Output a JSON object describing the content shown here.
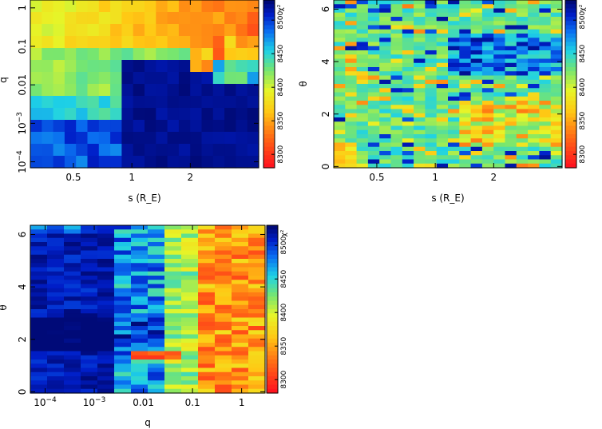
{
  "chart_data": [
    {
      "type": "heatmap",
      "id": "panel-1",
      "xlabel": "s (R_E)",
      "ylabel": "q",
      "x_scale": "log",
      "y_scale": "log",
      "xlim": [
        0.3,
        4.5
      ],
      "ylim": [
        7e-05,
        1.6
      ],
      "x_ticks": [
        {
          "value": 0.5,
          "label": "0.5"
        },
        {
          "value": 1,
          "label": "1"
        },
        {
          "value": 2,
          "label": "2"
        }
      ],
      "y_ticks": [
        {
          "value": 0.0001,
          "label": "10",
          "sup": "−4"
        },
        {
          "value": 0.001,
          "label": "10",
          "sup": "−3"
        },
        {
          "value": 0.01,
          "label": "0.01"
        },
        {
          "value": 0.1,
          "label": "0.1"
        },
        {
          "value": 1,
          "label": "1"
        }
      ],
      "grid_cols": 20,
      "grid_rows": 14,
      "colorbar": {
        "label": "χ²",
        "min": 8280,
        "max": 8530,
        "ticks": [
          8300,
          8350,
          8400,
          8450,
          8500
        ]
      }
    },
    {
      "type": "heatmap",
      "id": "panel-2",
      "xlabel": "s (R_E)",
      "ylabel": "θ",
      "x_scale": "log",
      "y_scale": "linear",
      "xlim": [
        0.3,
        4.5
      ],
      "ylim": [
        -0.05,
        6.35
      ],
      "x_ticks": [
        {
          "value": 0.5,
          "label": "0.5"
        },
        {
          "value": 1,
          "label": "1"
        },
        {
          "value": 2,
          "label": "2"
        }
      ],
      "y_ticks": [
        {
          "value": 0,
          "label": "0"
        },
        {
          "value": 2,
          "label": "2"
        },
        {
          "value": 4,
          "label": "4"
        },
        {
          "value": 6,
          "label": "6"
        }
      ],
      "grid_cols": 20,
      "grid_rows": 40,
      "colorbar": {
        "label": "χ²",
        "min": 8280,
        "max": 8530,
        "ticks": [
          8300,
          8350,
          8400,
          8450,
          8500
        ]
      }
    },
    {
      "type": "heatmap",
      "id": "panel-3",
      "xlabel": "q",
      "ylabel": "θ",
      "x_scale": "log",
      "y_scale": "linear",
      "xlim": [
        5e-05,
        3
      ],
      "ylim": [
        -0.05,
        6.35
      ],
      "x_ticks": [
        {
          "value": 0.0001,
          "label": "10",
          "sup": "−4"
        },
        {
          "value": 0.001,
          "label": "10",
          "sup": "−3"
        },
        {
          "value": 0.01,
          "label": "0.01"
        },
        {
          "value": 0.1,
          "label": "0.1"
        },
        {
          "value": 1,
          "label": "1"
        }
      ],
      "y_ticks": [
        {
          "value": 0,
          "label": "0"
        },
        {
          "value": 2,
          "label": "2"
        },
        {
          "value": 4,
          "label": "4"
        },
        {
          "value": 6,
          "label": "6"
        }
      ],
      "grid_cols": 14,
      "grid_rows": 40,
      "colorbar": {
        "label": "χ²",
        "min": 8280,
        "max": 8530,
        "ticks": [
          8300,
          8350,
          8400,
          8450,
          8500
        ]
      }
    }
  ]
}
